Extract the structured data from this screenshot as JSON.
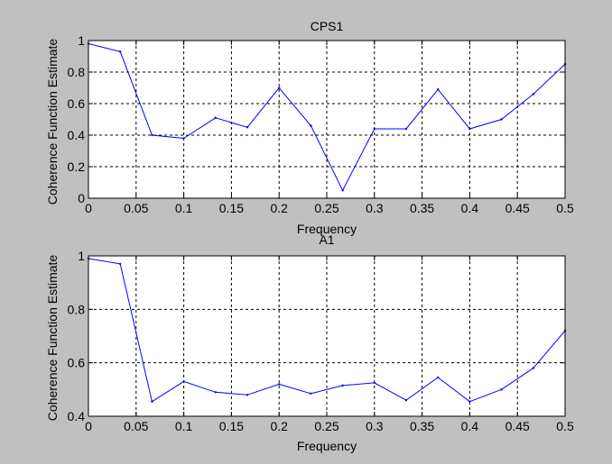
{
  "chart_data": [
    {
      "type": "line",
      "title": "CPS1",
      "xlabel": "Frequency",
      "ylabel": "Coherence Function Estimate",
      "xlim": [
        0,
        0.5
      ],
      "ylim": [
        0,
        1
      ],
      "xticks": [
        0,
        0.05,
        0.1,
        0.15,
        0.2,
        0.25,
        0.3,
        0.35,
        0.4,
        0.45,
        0.5
      ],
      "xtick_labels": [
        "0",
        "0.05",
        "0.1",
        "0.15",
        "0.2",
        "0.25",
        "0.3",
        "0.35",
        "0.4",
        "0.45",
        "0.5"
      ],
      "yticks": [
        0,
        0.2,
        0.4,
        0.6,
        0.8,
        1
      ],
      "ytick_labels": [
        "0",
        "0.2",
        "0.4",
        "0.6",
        "0.8",
        "1"
      ],
      "grid": true,
      "series_color": "#0000ff",
      "x": [
        0,
        0.0333,
        0.0667,
        0.1,
        0.1333,
        0.1667,
        0.2,
        0.2333,
        0.2667,
        0.3,
        0.3333,
        0.3667,
        0.4,
        0.4333,
        0.4667,
        0.5
      ],
      "y": [
        0.98,
        0.93,
        0.4,
        0.38,
        0.51,
        0.45,
        0.7,
        0.46,
        0.05,
        0.44,
        0.44,
        0.69,
        0.44,
        0.5,
        0.66,
        0.85
      ]
    },
    {
      "type": "line",
      "title": "A1",
      "xlabel": "Frequency",
      "ylabel": "Coherence Function Estimate",
      "xlim": [
        0,
        0.5
      ],
      "ylim": [
        0.4,
        1
      ],
      "xticks": [
        0,
        0.05,
        0.1,
        0.15,
        0.2,
        0.25,
        0.3,
        0.35,
        0.4,
        0.45,
        0.5
      ],
      "xtick_labels": [
        "0",
        "0.05",
        "0.1",
        "0.15",
        "0.2",
        "0.25",
        "0.3",
        "0.35",
        "0.4",
        "0.45",
        "0.5"
      ],
      "yticks": [
        0.4,
        0.6,
        0.8,
        1
      ],
      "ytick_labels": [
        "0.4",
        "0.6",
        "0.8",
        "1"
      ],
      "grid": true,
      "series_color": "#0000ff",
      "x": [
        0,
        0.0333,
        0.0667,
        0.1,
        0.1333,
        0.1667,
        0.2,
        0.2333,
        0.2667,
        0.3,
        0.3333,
        0.3667,
        0.4,
        0.4333,
        0.4667,
        0.5
      ],
      "y": [
        0.99,
        0.97,
        0.455,
        0.53,
        0.49,
        0.48,
        0.52,
        0.485,
        0.515,
        0.525,
        0.46,
        0.545,
        0.455,
        0.5,
        0.58,
        0.72
      ]
    }
  ]
}
